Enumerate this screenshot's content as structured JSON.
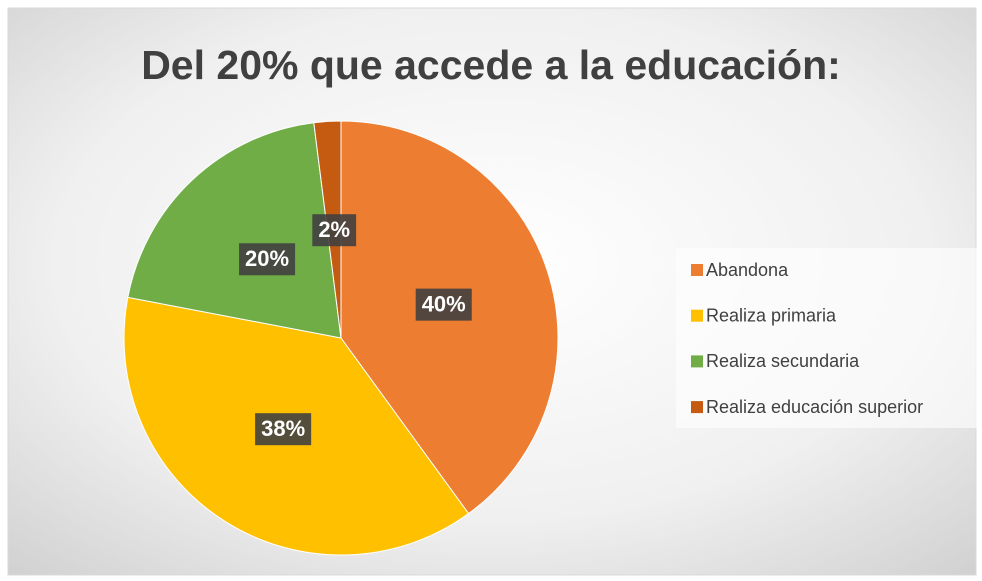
{
  "chart_data": {
    "type": "pie",
    "title": "Del 20% que accede a la educación:",
    "categories": [
      "Abandona",
      "Realiza primaria",
      "Realiza secundaria",
      "Realiza educación superior"
    ],
    "values": [
      40,
      38,
      20,
      2
    ],
    "value_labels": [
      "40%",
      "38%",
      "20%",
      "2%"
    ],
    "colors": [
      "#ED7D31",
      "#FFC000",
      "#70AD47",
      "#C55A11"
    ],
    "legend": "right"
  }
}
